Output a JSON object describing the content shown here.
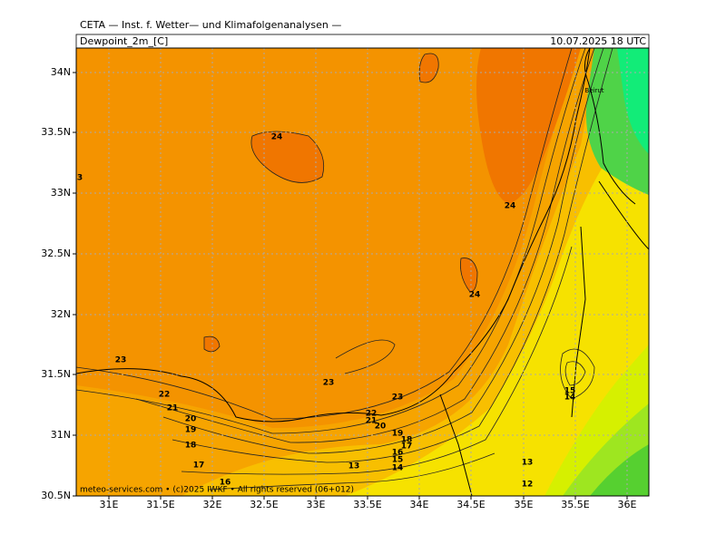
{
  "header": {
    "institute": "CETA — Inst. f. Wetter— und Klimafolgenanalysen —",
    "field": "Dewpoint_2m_[C]",
    "valid_time": "10.07.2025 18 UTC"
  },
  "map": {
    "latitude_labels": [
      "34N",
      "33.5N",
      "33N",
      "32.5N",
      "32N",
      "31.5N",
      "31N",
      "30.5N"
    ],
    "longitude_labels": [
      "31E",
      "31.5E",
      "32E",
      "32.5E",
      "33E",
      "33.5E",
      "34E",
      "34.5E",
      "35E",
      "35.5E",
      "36E"
    ],
    "contour_labels": [
      "3",
      "24",
      "24",
      "24",
      "23",
      "23",
      "23",
      "22",
      "21",
      "20",
      "19",
      "18",
      "17",
      "16",
      "22",
      "21",
      "20",
      "19",
      "18",
      "17",
      "16",
      "15",
      "14",
      "13",
      "13",
      "12",
      "15",
      "14"
    ],
    "place_labels": [
      "Beirut"
    ]
  },
  "footer": "meteo-services.com • (c)2025 IWKF • All rights reserved (06+012)"
}
